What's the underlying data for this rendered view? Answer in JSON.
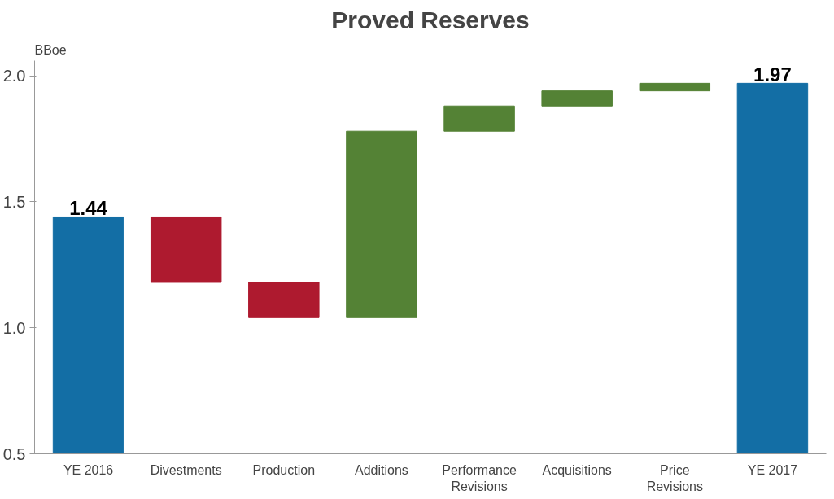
{
  "chart_data": {
    "type": "bar",
    "title": "Proved Reserves",
    "ylabel": "BBoe",
    "categories": [
      "YE 2016",
      "Divestments",
      "Production",
      "Additions",
      "Performance\nRevisions",
      "Acquisitions",
      "Price\nRevisions",
      "YE 2017"
    ],
    "values": [
      1.44,
      -0.26,
      -0.14,
      0.74,
      0.1,
      0.06,
      0.03,
      1.97
    ],
    "base": [
      null,
      1.44,
      1.18,
      1.04,
      1.78,
      1.88,
      1.94,
      null
    ],
    "colors": [
      "#136ea5",
      "#ae1a2f",
      "#ae1a2f",
      "#548235",
      "#548235",
      "#548235",
      "#548235",
      "#136ea5"
    ],
    "value_labels": [
      "1.44",
      null,
      null,
      null,
      null,
      null,
      null,
      "1.97"
    ],
    "ylim": [
      0.5,
      2.06
    ],
    "yticks": [
      {
        "value": 0.5,
        "label": "0.5"
      },
      {
        "value": 1.0,
        "label": "1.0"
      },
      {
        "value": 1.5,
        "label": "1.5"
      },
      {
        "value": 2.0,
        "label": "2.0"
      }
    ],
    "grid": false
  }
}
